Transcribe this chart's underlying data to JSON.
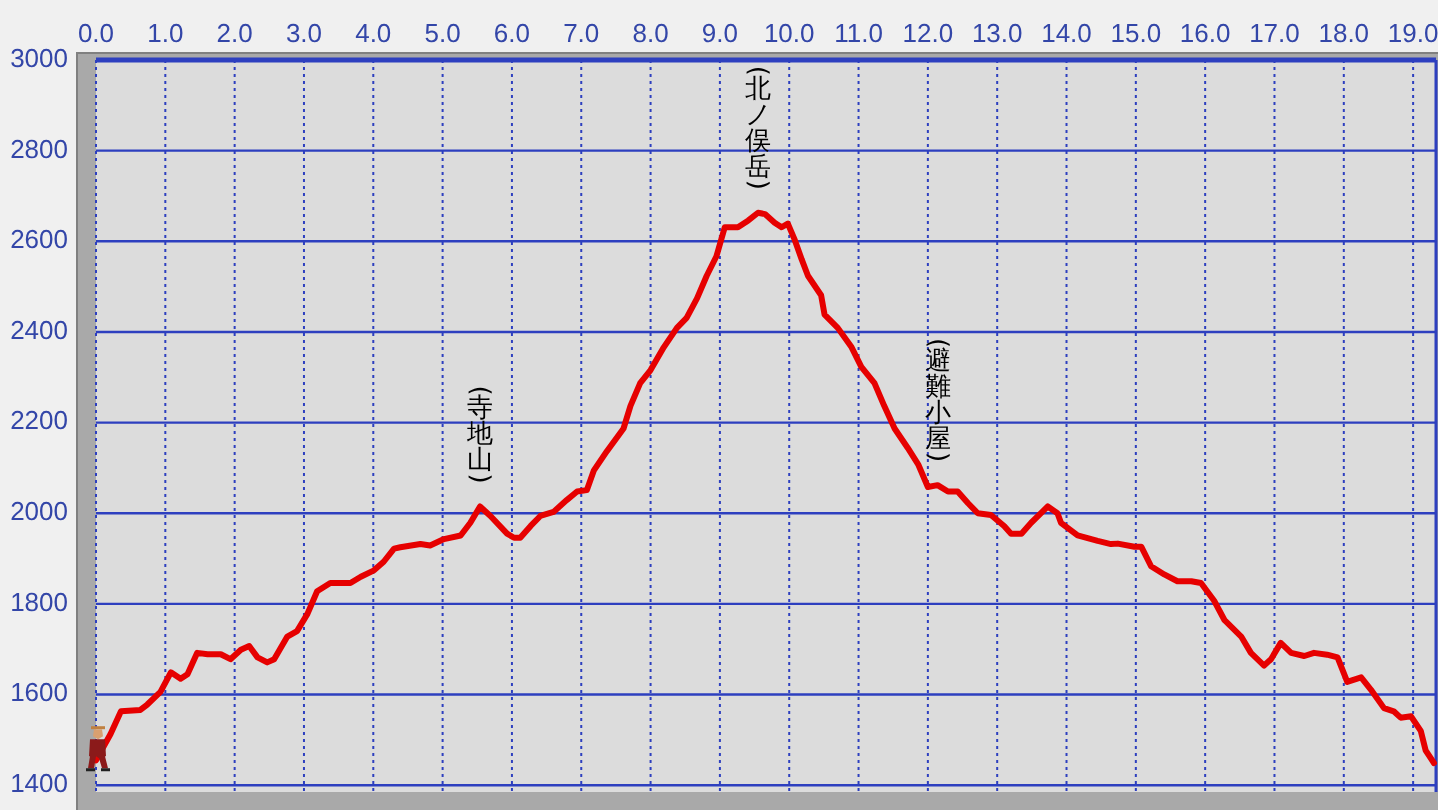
{
  "chart_data": {
    "type": "line",
    "x": [
      0,
      0.21,
      0.36,
      0.64,
      0.74,
      0.93,
      1.08,
      1.22,
      1.32,
      1.46,
      1.61,
      1.8,
      1.94,
      2.09,
      2.21,
      2.33,
      2.47,
      2.57,
      2.76,
      2.9,
      3.05,
      3.19,
      3.38,
      3.67,
      3.82,
      4.01,
      4.15,
      4.3,
      4.39,
      4.68,
      4.82,
      5.02,
      5.26,
      5.4,
      5.54,
      5.69,
      5.93,
      6.03,
      6.12,
      6.27,
      6.41,
      6.6,
      6.79,
      6.94,
      7.08,
      7.18,
      7.37,
      7.61,
      7.71,
      7.85,
      8.0,
      8.19,
      8.38,
      8.52,
      8.67,
      8.81,
      8.95,
      9.07,
      9.26,
      9.41,
      9.55,
      9.65,
      9.79,
      9.89,
      9.98,
      10.08,
      10.18,
      10.27,
      10.46,
      10.51,
      10.7,
      10.9,
      11.04,
      11.23,
      11.37,
      11.52,
      11.71,
      11.86,
      12.0,
      12.14,
      12.29,
      12.43,
      12.58,
      12.72,
      12.91,
      13.1,
      13.2,
      13.35,
      13.49,
      13.73,
      13.87,
      13.92,
      14.16,
      14.45,
      14.64,
      14.74,
      14.98,
      15.08,
      15.22,
      15.41,
      15.6,
      15.8,
      15.94,
      16.13,
      16.28,
      16.52,
      16.66,
      16.85,
      16.95,
      17.09,
      17.24,
      17.43,
      17.57,
      17.76,
      17.91,
      18.05,
      18.25,
      18.39,
      18.58,
      18.72,
      18.82,
      18.97,
      19.11,
      19.18,
      19.3
    ],
    "values": [
      1455,
      1513,
      1563,
      1566,
      1578,
      1606,
      1649,
      1635,
      1645,
      1692,
      1689,
      1689,
      1678,
      1699,
      1707,
      1682,
      1671,
      1678,
      1728,
      1740,
      1778,
      1828,
      1846,
      1846,
      1860,
      1874,
      1893,
      1922,
      1925,
      1932,
      1929,
      1943,
      1951,
      1979,
      2015,
      1994,
      1955,
      1946,
      1946,
      1972,
      1994,
      2003,
      2029,
      2048,
      2051,
      2094,
      2137,
      2187,
      2237,
      2287,
      2316,
      2366,
      2409,
      2431,
      2474,
      2524,
      2567,
      2631,
      2631,
      2646,
      2663,
      2660,
      2641,
      2631,
      2639,
      2603,
      2560,
      2524,
      2481,
      2438,
      2409,
      2366,
      2323,
      2287,
      2237,
      2187,
      2144,
      2108,
      2058,
      2062,
      2048,
      2048,
      2022,
      2000,
      1996,
      1972,
      1955,
      1955,
      1979,
      2015,
      2000,
      1979,
      1951,
      1939,
      1932,
      1933,
      1926,
      1926,
      1883,
      1865,
      1850,
      1850,
      1846,
      1807,
      1764,
      1728,
      1692,
      1664,
      1678,
      1714,
      1692,
      1685,
      1692,
      1688,
      1682,
      1628,
      1638,
      1611,
      1570,
      1563,
      1549,
      1552,
      1520,
      1477,
      1449
    ],
    "color": "#e60000",
    "xlim": [
      0,
      19.33
    ],
    "ylim": [
      1385,
      3000
    ],
    "xticks": [
      {
        "value": 0,
        "label": "0.0"
      },
      {
        "value": 1,
        "label": "1.0"
      },
      {
        "value": 2,
        "label": "2.0"
      },
      {
        "value": 3,
        "label": "3.0"
      },
      {
        "value": 4,
        "label": "4.0"
      },
      {
        "value": 5,
        "label": "5.0"
      },
      {
        "value": 6,
        "label": "6.0"
      },
      {
        "value": 7,
        "label": "7.0"
      },
      {
        "value": 8,
        "label": "8.0"
      },
      {
        "value": 9,
        "label": "9.0"
      },
      {
        "value": 10,
        "label": "10.0"
      },
      {
        "value": 11,
        "label": "11.0"
      },
      {
        "value": 12,
        "label": "12.0"
      },
      {
        "value": 13,
        "label": "13.0"
      },
      {
        "value": 14,
        "label": "14.0"
      },
      {
        "value": 15,
        "label": "15.0"
      },
      {
        "value": 16,
        "label": "16.0"
      },
      {
        "value": 17,
        "label": "17.0"
      },
      {
        "value": 18,
        "label": "18.0"
      },
      {
        "value": 19,
        "label": "19.0"
      }
    ],
    "yticks": [
      1400,
      1600,
      1800,
      2000,
      2200,
      2400,
      2600,
      2800,
      3000
    ],
    "grid": true,
    "annotations": [
      {
        "text": "(寺地山)",
        "x": 5.54,
        "y": 2015
      },
      {
        "text": "(北ノ俣岳)",
        "x": 9.55,
        "y": 2663
      },
      {
        "text": "(避難小屋)",
        "x": 12.14,
        "y": 2062
      }
    ]
  }
}
